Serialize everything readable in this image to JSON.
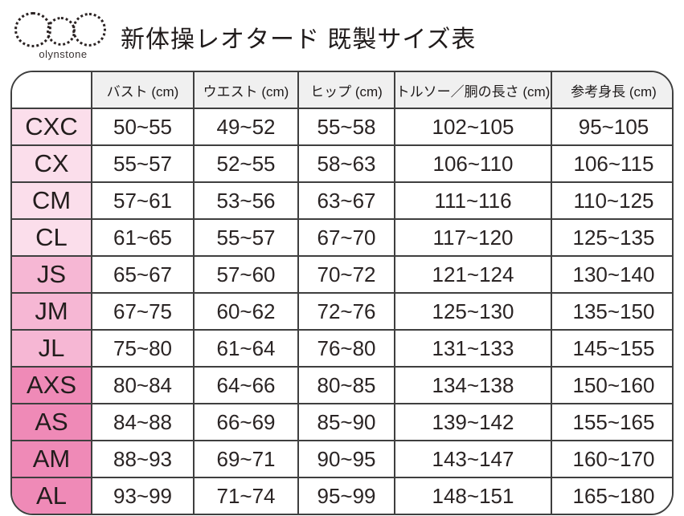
{
  "logo": {
    "text": "olynstone"
  },
  "title": "新体操レオタード 既製サイズ表",
  "colors": {
    "border": "#3f3f3f",
    "header_bg": "#f0f0f0",
    "group_colors": {
      "child": "#fbdeeb",
      "junior": "#f6b7d4",
      "adult": "#ef8ab7"
    }
  },
  "table": {
    "columns": [
      "バスト (cm)",
      "ウエスト (cm)",
      "ヒップ (cm)",
      "トルソー／胴の長さ (cm)",
      "参考身長 (cm)"
    ],
    "rows": [
      {
        "size": "CXC",
        "group": "child",
        "values": [
          "50~55",
          "49~52",
          "55~58",
          "102~105",
          "95~105"
        ]
      },
      {
        "size": "CX",
        "group": "child",
        "values": [
          "55~57",
          "52~55",
          "58~63",
          "106~110",
          "106~115"
        ]
      },
      {
        "size": "CM",
        "group": "child",
        "values": [
          "57~61",
          "53~56",
          "63~67",
          "111~116",
          "110~125"
        ]
      },
      {
        "size": "CL",
        "group": "child",
        "values": [
          "61~65",
          "55~57",
          "67~70",
          "117~120",
          "125~135"
        ]
      },
      {
        "size": "JS",
        "group": "junior",
        "values": [
          "65~67",
          "57~60",
          "70~72",
          "121~124",
          "130~140"
        ]
      },
      {
        "size": "JM",
        "group": "junior",
        "values": [
          "67~75",
          "60~62",
          "72~76",
          "125~130",
          "135~150"
        ]
      },
      {
        "size": "JL",
        "group": "junior",
        "values": [
          "75~80",
          "61~64",
          "76~80",
          "131~133",
          "145~155"
        ]
      },
      {
        "size": "AXS",
        "group": "adult",
        "values": [
          "80~84",
          "64~66",
          "80~85",
          "134~138",
          "150~160"
        ]
      },
      {
        "size": "AS",
        "group": "adult",
        "values": [
          "84~88",
          "66~69",
          "85~90",
          "139~142",
          "155~165"
        ]
      },
      {
        "size": "AM",
        "group": "adult",
        "values": [
          "88~93",
          "69~71",
          "90~95",
          "143~147",
          "160~170"
        ]
      },
      {
        "size": "AL",
        "group": "adult",
        "values": [
          "93~99",
          "71~74",
          "95~99",
          "148~151",
          "165~180"
        ]
      }
    ]
  }
}
